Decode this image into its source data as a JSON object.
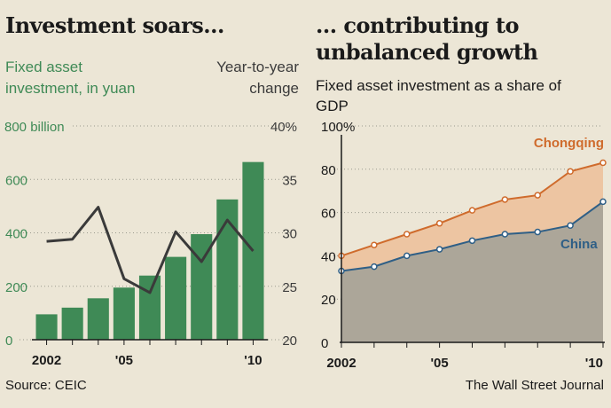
{
  "left": {
    "headline": "Investment soars...",
    "left_axis_label_line1": "Fixed asset",
    "left_axis_label_line2": "investment, in yuan",
    "right_axis_label_line1": "Year-to-year",
    "right_axis_label_line2": "change",
    "top_left_tick": "800 billion",
    "top_right_tick": "40%",
    "source": "Source: CEIC"
  },
  "right": {
    "headline_line1": "... contributing to",
    "headline_line2": "unbalanced growth",
    "subtitle_line1": "Fixed asset investment as a share of",
    "subtitle_line2": "GDP",
    "credit": "The Wall Street Journal"
  },
  "colors": {
    "bar_green": "#3f8a56",
    "line_dark": "#3a3a3a",
    "chongqing_orange": "#cf6b2c",
    "china_blue": "#2f5f86",
    "fill_orange": "#edc5a2",
    "fill_grey": "#aca699"
  },
  "chart_data": [
    {
      "type": "bar",
      "categories": [
        "2002",
        "2003",
        "2004",
        "'05",
        "2006",
        "2007",
        "2008",
        "2009",
        "'10"
      ],
      "x_tick_labels": {
        "2002": "2002",
        "'05": "'05",
        "'10": "'10"
      },
      "series": [
        {
          "name": "Fixed asset investment, in yuan",
          "axis": "left",
          "values": [
            95,
            120,
            155,
            195,
            240,
            310,
            395,
            525,
            665
          ]
        },
        {
          "name": "Year-to-year change",
          "axis": "right",
          "type": "line",
          "values": [
            29.2,
            29.4,
            32.4,
            25.7,
            24.4,
            30.1,
            27.3,
            31.2,
            28.3
          ]
        }
      ],
      "left_axis": {
        "ylim": [
          0,
          800
        ],
        "ticks": [
          0,
          200,
          400,
          600
        ],
        "top_label": "800 billion"
      },
      "right_axis": {
        "ylim": [
          20,
          40
        ],
        "ticks": [
          20,
          25,
          30,
          35
        ],
        "top_label": "40%"
      },
      "title": "Investment soars...",
      "grid": true
    },
    {
      "type": "area",
      "x": [
        "2002",
        "2003",
        "2004",
        "'05",
        "2006",
        "2007",
        "2008",
        "2009",
        "'10"
      ],
      "x_tick_labels": {
        "2002": "2002",
        "'05": "'05",
        "'10": "'10"
      },
      "series": [
        {
          "name": "Chongqing",
          "values": [
            40,
            45,
            50,
            55,
            61,
            66,
            68,
            79,
            83
          ]
        },
        {
          "name": "China",
          "values": [
            33,
            35,
            40,
            43,
            47,
            50,
            51,
            54,
            65
          ]
        }
      ],
      "ylim": [
        0,
        100
      ],
      "y_ticks": [
        "0",
        "20",
        "40",
        "60",
        "80",
        "100%"
      ],
      "title": "... contributing to unbalanced growth",
      "subtitle": "Fixed asset investment as a share of GDP",
      "grid": true
    }
  ]
}
